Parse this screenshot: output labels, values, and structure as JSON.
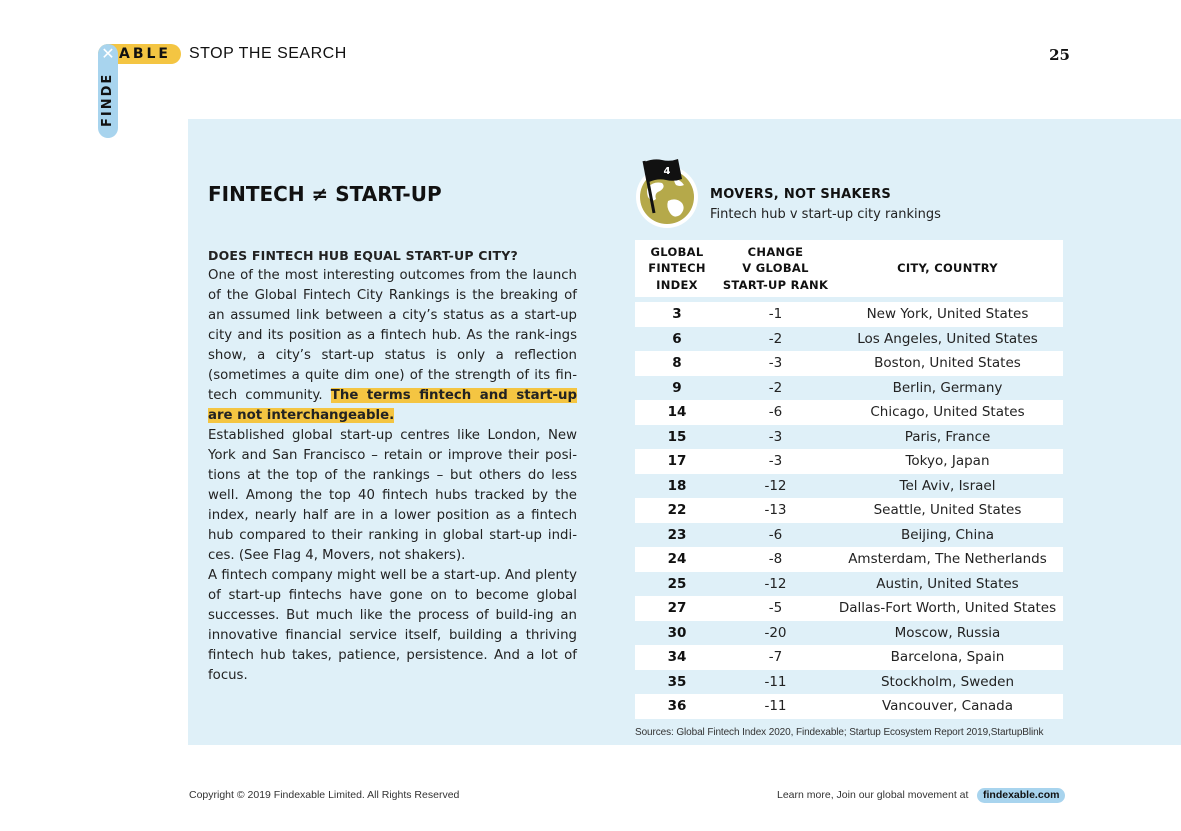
{
  "logo": {
    "x_mark": "✕",
    "able": "ABLE",
    "finde": "FINDE"
  },
  "header": {
    "section_title": "STOP THE SEARCH",
    "page_number": "25"
  },
  "article": {
    "heading": "FINTECH ≠ START-UP",
    "subheading": "DOES FINTECH HUB EQUAL START-UP CITY?",
    "para1": "One of the most interesting outcomes from the launch of the Global Fintech City Rankings is the breaking of an assumed link between a city’s status as a start-up city and its position as a fintech hub. As the rank-ings show, a city’s start-up status is only a reflection (sometimes a quite dim one) of the strength of its fin-tech community.",
    "para1_highlight": "The terms fintech and start-up are not interchangeable.",
    "para2": "Established global start-up centres like London, New York and San Francisco – retain or improve their posi-tions at the top of the rankings – but others do less well. Among the top 40 fintech hubs tracked by the index, nearly half are in a lower position as a fintech hub compared to their ranking in global start-up indi-ces. (See Flag 4, Movers, not shakers).",
    "para3": "A fintech company might well be a start-up. And plenty of start-up fintechs have gone on to become global successes. But much like the process of build-ing an innovative financial service itself, building a thriving fintech hub takes, patience, persistence. And a lot of focus."
  },
  "flag": {
    "number": "4"
  },
  "table": {
    "title": "MOVERS, NOT SHAKERS",
    "subtitle": "Fintech hub v start-up city rankings",
    "headers": {
      "col1": [
        "GLOBAL",
        "FINTECH",
        "INDEX"
      ],
      "col2": [
        "CHANGE",
        "V GLOBAL",
        "START-UP RANK"
      ],
      "col3": "CITY, COUNTRY"
    },
    "rows": [
      {
        "index": "3",
        "change": "-1",
        "city": "New York, United States"
      },
      {
        "index": "6",
        "change": "-2",
        "city": "Los Angeles, United States"
      },
      {
        "index": "8",
        "change": "-3",
        "city": "Boston, United States"
      },
      {
        "index": "9",
        "change": "-2",
        "city": "Berlin, Germany"
      },
      {
        "index": "14",
        "change": "-6",
        "city": "Chicago, United States"
      },
      {
        "index": "15",
        "change": "-3",
        "city": "Paris, France"
      },
      {
        "index": "17",
        "change": "-3",
        "city": "Tokyo, Japan"
      },
      {
        "index": "18",
        "change": "-12",
        "city": "Tel Aviv, Israel"
      },
      {
        "index": "22",
        "change": "-13",
        "city": "Seattle, United States"
      },
      {
        "index": "23",
        "change": "-6",
        "city": "Beijing, China"
      },
      {
        "index": "24",
        "change": "-8",
        "city": "Amsterdam, The Netherlands"
      },
      {
        "index": "25",
        "change": "-12",
        "city": "Austin, United States"
      },
      {
        "index": "27",
        "change": "-5",
        "city": "Dallas-Fort Worth, United States"
      },
      {
        "index": "30",
        "change": "-20",
        "city": "Moscow, Russia"
      },
      {
        "index": "34",
        "change": "-7",
        "city": "Barcelona, Spain"
      },
      {
        "index": "35",
        "change": "-11",
        "city": "Stockholm, Sweden"
      },
      {
        "index": "36",
        "change": "-11",
        "city": "Vancouver, Canada"
      }
    ],
    "sources": "Sources: Global Fintech Index 2020, Findexable; Startup Ecosystem Report 2019,StartupBlink"
  },
  "footer": {
    "copyright": "Copyright © 2019 Findexable Limited. All Rights Reserved",
    "learn_more": "Learn more, Join our global movement at",
    "site": "findexable.com"
  },
  "colors": {
    "yellow": "#f4c542",
    "light_blue": "#a8d4ee",
    "panel": "#dff0f8"
  }
}
